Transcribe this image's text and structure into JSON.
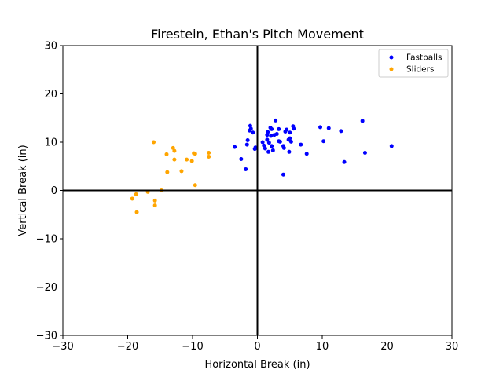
{
  "chart_data": {
    "type": "scatter",
    "title": "Firestein, Ethan's Pitch Movement",
    "xlabel": "Horizontal Break (in)",
    "ylabel": "Vertical Break (in)",
    "xlim": [
      -30,
      30
    ],
    "ylim": [
      -30,
      30
    ],
    "xticks": [
      -30,
      -20,
      -10,
      0,
      10,
      20,
      30
    ],
    "yticks": [
      -30,
      -20,
      -10,
      0,
      10,
      20,
      30
    ],
    "grid": false,
    "reference_lines": {
      "x": 0,
      "y": 0
    },
    "legend_position": "top-right",
    "series": [
      {
        "name": "Fastballs",
        "color": "#0000ff",
        "points": [
          [
            -3.5,
            9.0
          ],
          [
            -2.5,
            6.5
          ],
          [
            -1.8,
            4.4
          ],
          [
            -1.6,
            9.5
          ],
          [
            -1.5,
            10.4
          ],
          [
            -1.2,
            12.4
          ],
          [
            -1.1,
            13.4
          ],
          [
            -1.0,
            12.8
          ],
          [
            -0.7,
            12.0
          ],
          [
            -0.4,
            8.6
          ],
          [
            -0.3,
            8.9
          ],
          [
            0.8,
            10.0
          ],
          [
            1.0,
            9.3
          ],
          [
            1.2,
            8.7
          ],
          [
            1.5,
            11.5
          ],
          [
            1.5,
            10.5
          ],
          [
            1.6,
            12.1
          ],
          [
            1.7,
            8.0
          ],
          [
            1.8,
            9.9
          ],
          [
            2.0,
            13.0
          ],
          [
            2.1,
            11.3
          ],
          [
            2.2,
            12.7
          ],
          [
            2.2,
            9.2
          ],
          [
            2.4,
            8.3
          ],
          [
            2.6,
            11.5
          ],
          [
            2.8,
            14.5
          ],
          [
            3.0,
            11.7
          ],
          [
            3.3,
            12.7
          ],
          [
            3.3,
            10.2
          ],
          [
            3.5,
            10.1
          ],
          [
            4.0,
            3.3
          ],
          [
            4.0,
            9.2
          ],
          [
            4.1,
            8.8
          ],
          [
            4.3,
            12.2
          ],
          [
            4.5,
            12.6
          ],
          [
            4.8,
            10.5
          ],
          [
            4.9,
            8.0
          ],
          [
            5.0,
            10.8
          ],
          [
            5.0,
            12.0
          ],
          [
            5.2,
            10.1
          ],
          [
            5.5,
            13.3
          ],
          [
            5.6,
            12.8
          ],
          [
            6.7,
            9.5
          ],
          [
            7.6,
            7.6
          ],
          [
            9.7,
            13.1
          ],
          [
            10.2,
            10.2
          ],
          [
            11.0,
            12.9
          ],
          [
            12.9,
            12.3
          ],
          [
            13.4,
            5.9
          ],
          [
            16.2,
            14.4
          ],
          [
            16.6,
            7.8
          ],
          [
            20.7,
            9.2
          ]
        ]
      },
      {
        "name": "Sliders",
        "color": "#ffa500",
        "points": [
          [
            -19.3,
            -1.7
          ],
          [
            -18.7,
            -0.8
          ],
          [
            -18.6,
            -4.5
          ],
          [
            -16.9,
            -0.3
          ],
          [
            -16.0,
            10.0
          ],
          [
            -15.8,
            -2.1
          ],
          [
            -15.8,
            -3.1
          ],
          [
            -14.8,
            0.0
          ],
          [
            -14.0,
            7.5
          ],
          [
            -13.9,
            3.8
          ],
          [
            -13.0,
            8.8
          ],
          [
            -12.8,
            8.2
          ],
          [
            -12.8,
            6.4
          ],
          [
            -11.7,
            4.0
          ],
          [
            -10.9,
            6.4
          ],
          [
            -10.1,
            6.1
          ],
          [
            -9.8,
            7.7
          ],
          [
            -9.6,
            7.6
          ],
          [
            -9.6,
            1.1
          ],
          [
            -7.5,
            7.8
          ],
          [
            -7.5,
            7.0
          ]
        ]
      }
    ]
  }
}
